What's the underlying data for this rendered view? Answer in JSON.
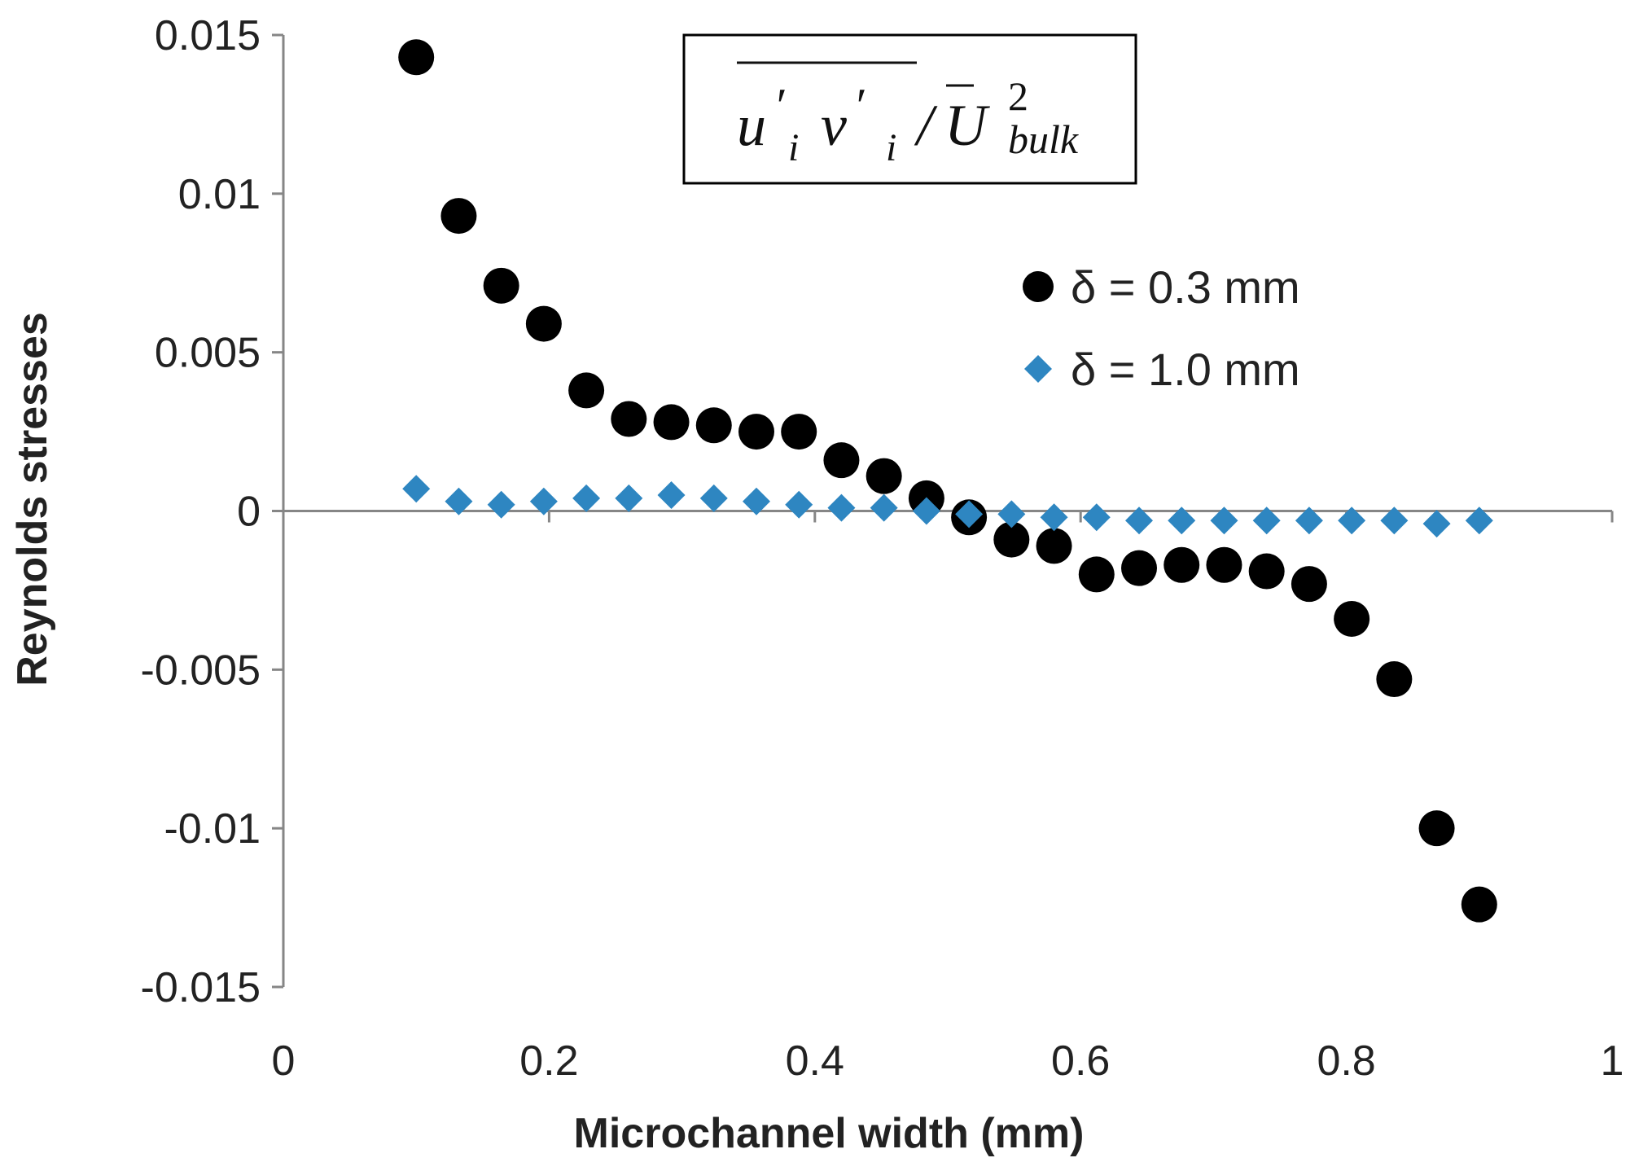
{
  "chart_data": {
    "type": "scatter",
    "title_formula": {
      "display": "u'ᵢv'ᵢ / Ū²bulk",
      "numerator_u": "u",
      "numerator_prime_u": "′",
      "sub_i_1": "i",
      "numerator_v": "v",
      "numerator_prime_v": "′",
      "sub_i_2": "i",
      "slash": "/",
      "denominator_U": "U",
      "superscript": "2",
      "subscript": "bulk"
    },
    "xlabel": "Microchannel width (mm)",
    "ylabel": "Reynolds stresses",
    "xlim": [
      0,
      1
    ],
    "ylim": [
      -0.015,
      0.015
    ],
    "x_ticks": [
      {
        "value": 0,
        "label": "0"
      },
      {
        "value": 0.2,
        "label": "0.2"
      },
      {
        "value": 0.4,
        "label": "0.4"
      },
      {
        "value": 0.6,
        "label": "0.6"
      },
      {
        "value": 0.8,
        "label": "0.8"
      },
      {
        "value": 1,
        "label": "1"
      }
    ],
    "y_ticks": [
      {
        "value": 0.015,
        "label": "0.015"
      },
      {
        "value": 0.01,
        "label": "0.01"
      },
      {
        "value": 0.005,
        "label": "0.005"
      },
      {
        "value": 0,
        "label": "0"
      },
      {
        "value": -0.005,
        "label": "-0.005"
      },
      {
        "value": -0.01,
        "label": "-0.01"
      },
      {
        "value": -0.015,
        "label": "-0.015"
      }
    ],
    "legend_position": "right",
    "series": [
      {
        "name": "δ = 0.3 mm",
        "marker": "circle",
        "color": "#000000",
        "points": [
          [
            0.1,
            0.0143
          ],
          [
            0.132,
            0.0093
          ],
          [
            0.164,
            0.0071
          ],
          [
            0.196,
            0.0059
          ],
          [
            0.228,
            0.0038
          ],
          [
            0.26,
            0.0029
          ],
          [
            0.292,
            0.0028
          ],
          [
            0.324,
            0.0027
          ],
          [
            0.356,
            0.0025
          ],
          [
            0.388,
            0.0025
          ],
          [
            0.42,
            0.0016
          ],
          [
            0.452,
            0.0011
          ],
          [
            0.484,
            0.0004
          ],
          [
            0.516,
            -0.0002
          ],
          [
            0.548,
            -0.0009
          ],
          [
            0.58,
            -0.0011
          ],
          [
            0.612,
            -0.002
          ],
          [
            0.644,
            -0.0018
          ],
          [
            0.676,
            -0.0017
          ],
          [
            0.708,
            -0.0017
          ],
          [
            0.74,
            -0.0019
          ],
          [
            0.772,
            -0.0023
          ],
          [
            0.804,
            -0.0034
          ],
          [
            0.836,
            -0.0053
          ],
          [
            0.868,
            -0.01
          ],
          [
            0.9,
            -0.0124
          ]
        ]
      },
      {
        "name": "δ = 1.0 mm",
        "marker": "diamond",
        "color": "#2e86c1",
        "points": [
          [
            0.1,
            0.0007
          ],
          [
            0.132,
            0.0003
          ],
          [
            0.164,
            0.0002
          ],
          [
            0.196,
            0.0003
          ],
          [
            0.228,
            0.0004
          ],
          [
            0.26,
            0.0004
          ],
          [
            0.292,
            0.0005
          ],
          [
            0.324,
            0.0004
          ],
          [
            0.356,
            0.0003
          ],
          [
            0.388,
            0.0002
          ],
          [
            0.42,
            0.0001
          ],
          [
            0.452,
            0.0001
          ],
          [
            0.484,
            0.0
          ],
          [
            0.516,
            -0.0001
          ],
          [
            0.548,
            -0.0001
          ],
          [
            0.58,
            -0.0002
          ],
          [
            0.612,
            -0.0002
          ],
          [
            0.644,
            -0.0003
          ],
          [
            0.676,
            -0.0003
          ],
          [
            0.708,
            -0.0003
          ],
          [
            0.74,
            -0.0003
          ],
          [
            0.772,
            -0.0003
          ],
          [
            0.804,
            -0.0003
          ],
          [
            0.836,
            -0.0003
          ],
          [
            0.868,
            -0.0004
          ],
          [
            0.9,
            -0.0003
          ]
        ]
      }
    ]
  }
}
